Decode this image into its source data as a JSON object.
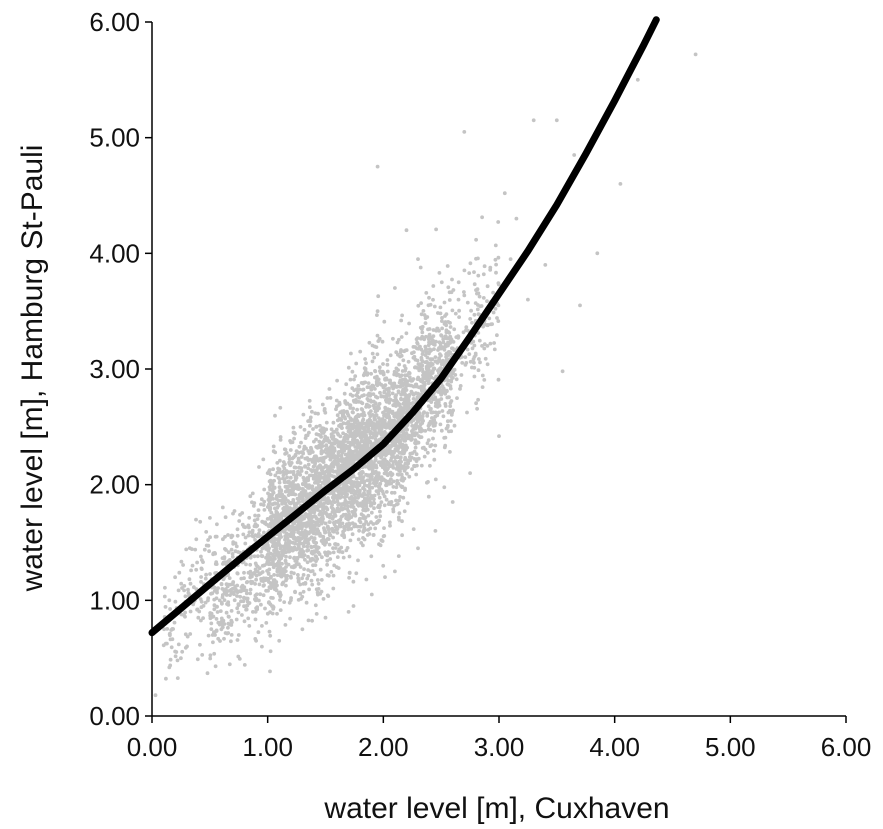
{
  "chart_data": {
    "type": "scatter",
    "xlabel": "water level [m], Cuxhaven",
    "ylabel": "water level [m], Hamburg St-Pauli",
    "xlim": [
      0,
      6
    ],
    "ylim": [
      0,
      6
    ],
    "xticks": [
      "0.00",
      "1.00",
      "2.00",
      "3.00",
      "4.00",
      "5.00",
      "6.00"
    ],
    "yticks": [
      "0.00",
      "1.00",
      "2.00",
      "3.00",
      "4.00",
      "5.00",
      "6.00"
    ],
    "grid": false,
    "scatter_color": "#c4c4c4",
    "fit_line_color": "#000000",
    "series": [
      {
        "kind": "scatter",
        "points": [
          [
            0.03,
            0.18
          ],
          [
            0.15,
            0.42
          ],
          [
            0.25,
            0.5
          ],
          [
            0.48,
            0.37
          ],
          [
            0.55,
            0.43
          ],
          [
            0.95,
            0.6
          ],
          [
            0.2,
            1.2
          ],
          [
            0.35,
            1.3
          ],
          [
            0.55,
            1.55
          ],
          [
            0.7,
            1.75
          ],
          [
            0.85,
            1.9
          ],
          [
            1.0,
            2.1
          ],
          [
            1.2,
            2.3
          ],
          [
            1.35,
            2.55
          ],
          [
            1.6,
            2.9
          ],
          [
            1.8,
            3.15
          ],
          [
            1.95,
            3.5
          ],
          [
            2.1,
            3.7
          ],
          [
            2.3,
            3.95
          ],
          [
            2.2,
            4.2
          ],
          [
            1.95,
            4.75
          ],
          [
            2.7,
            5.05
          ],
          [
            3.3,
            5.15
          ],
          [
            3.5,
            5.15
          ],
          [
            3.65,
            4.85
          ],
          [
            4.05,
            4.6
          ],
          [
            4.2,
            5.5
          ],
          [
            4.7,
            5.72
          ],
          [
            3.05,
            4.52
          ],
          [
            3.15,
            4.3
          ],
          [
            3.85,
            4.0
          ],
          [
            3.7,
            3.55
          ],
          [
            3.55,
            2.98
          ],
          [
            3.0,
            2.42
          ],
          [
            2.75,
            2.1
          ],
          [
            2.6,
            1.85
          ],
          [
            2.45,
            1.6
          ],
          [
            2.3,
            1.45
          ],
          [
            2.1,
            1.25
          ],
          [
            1.9,
            1.05
          ],
          [
            1.7,
            0.9
          ],
          [
            1.5,
            0.85
          ],
          [
            1.3,
            0.75
          ],
          [
            1.1,
            0.65
          ],
          [
            0.9,
            0.65
          ],
          [
            0.75,
            0.7
          ],
          [
            0.6,
            0.75
          ],
          [
            0.4,
            0.85
          ],
          [
            0.25,
            0.95
          ],
          [
            0.15,
            1.0
          ],
          [
            3.25,
            3.6
          ],
          [
            3.4,
            3.9
          ],
          [
            2.9,
            3.2
          ],
          [
            2.8,
            3.4
          ],
          [
            2.65,
            3.6
          ],
          [
            3.1,
            3.95
          ]
        ],
        "cloud": [
          {
            "from": 0.5,
            "to": 1.0,
            "center": 1.2,
            "spread": 0.28,
            "count": 380
          },
          {
            "from": 1.0,
            "to": 1.6,
            "center": 1.75,
            "spread": 0.34,
            "count": 1400
          },
          {
            "from": 1.6,
            "to": 2.2,
            "center": 2.3,
            "spread": 0.36,
            "count": 1600
          },
          {
            "from": 2.2,
            "to": 2.6,
            "center": 2.85,
            "spread": 0.34,
            "count": 620
          },
          {
            "from": 2.6,
            "to": 3.0,
            "center": 3.35,
            "spread": 0.3,
            "count": 160
          },
          {
            "from": 0.1,
            "to": 0.5,
            "center": 0.95,
            "spread": 0.25,
            "count": 110
          }
        ]
      },
      {
        "kind": "line",
        "x": [
          0.0,
          0.25,
          0.5,
          0.75,
          1.0,
          1.25,
          1.5,
          1.75,
          2.0,
          2.25,
          2.5,
          2.75,
          3.0,
          3.25,
          3.5,
          3.75,
          4.0,
          4.25,
          4.36
        ],
        "y": [
          0.72,
          0.93,
          1.14,
          1.35,
          1.55,
          1.75,
          1.95,
          2.14,
          2.35,
          2.62,
          2.92,
          3.28,
          3.65,
          4.02,
          4.42,
          4.86,
          5.32,
          5.8,
          6.02
        ]
      }
    ]
  }
}
